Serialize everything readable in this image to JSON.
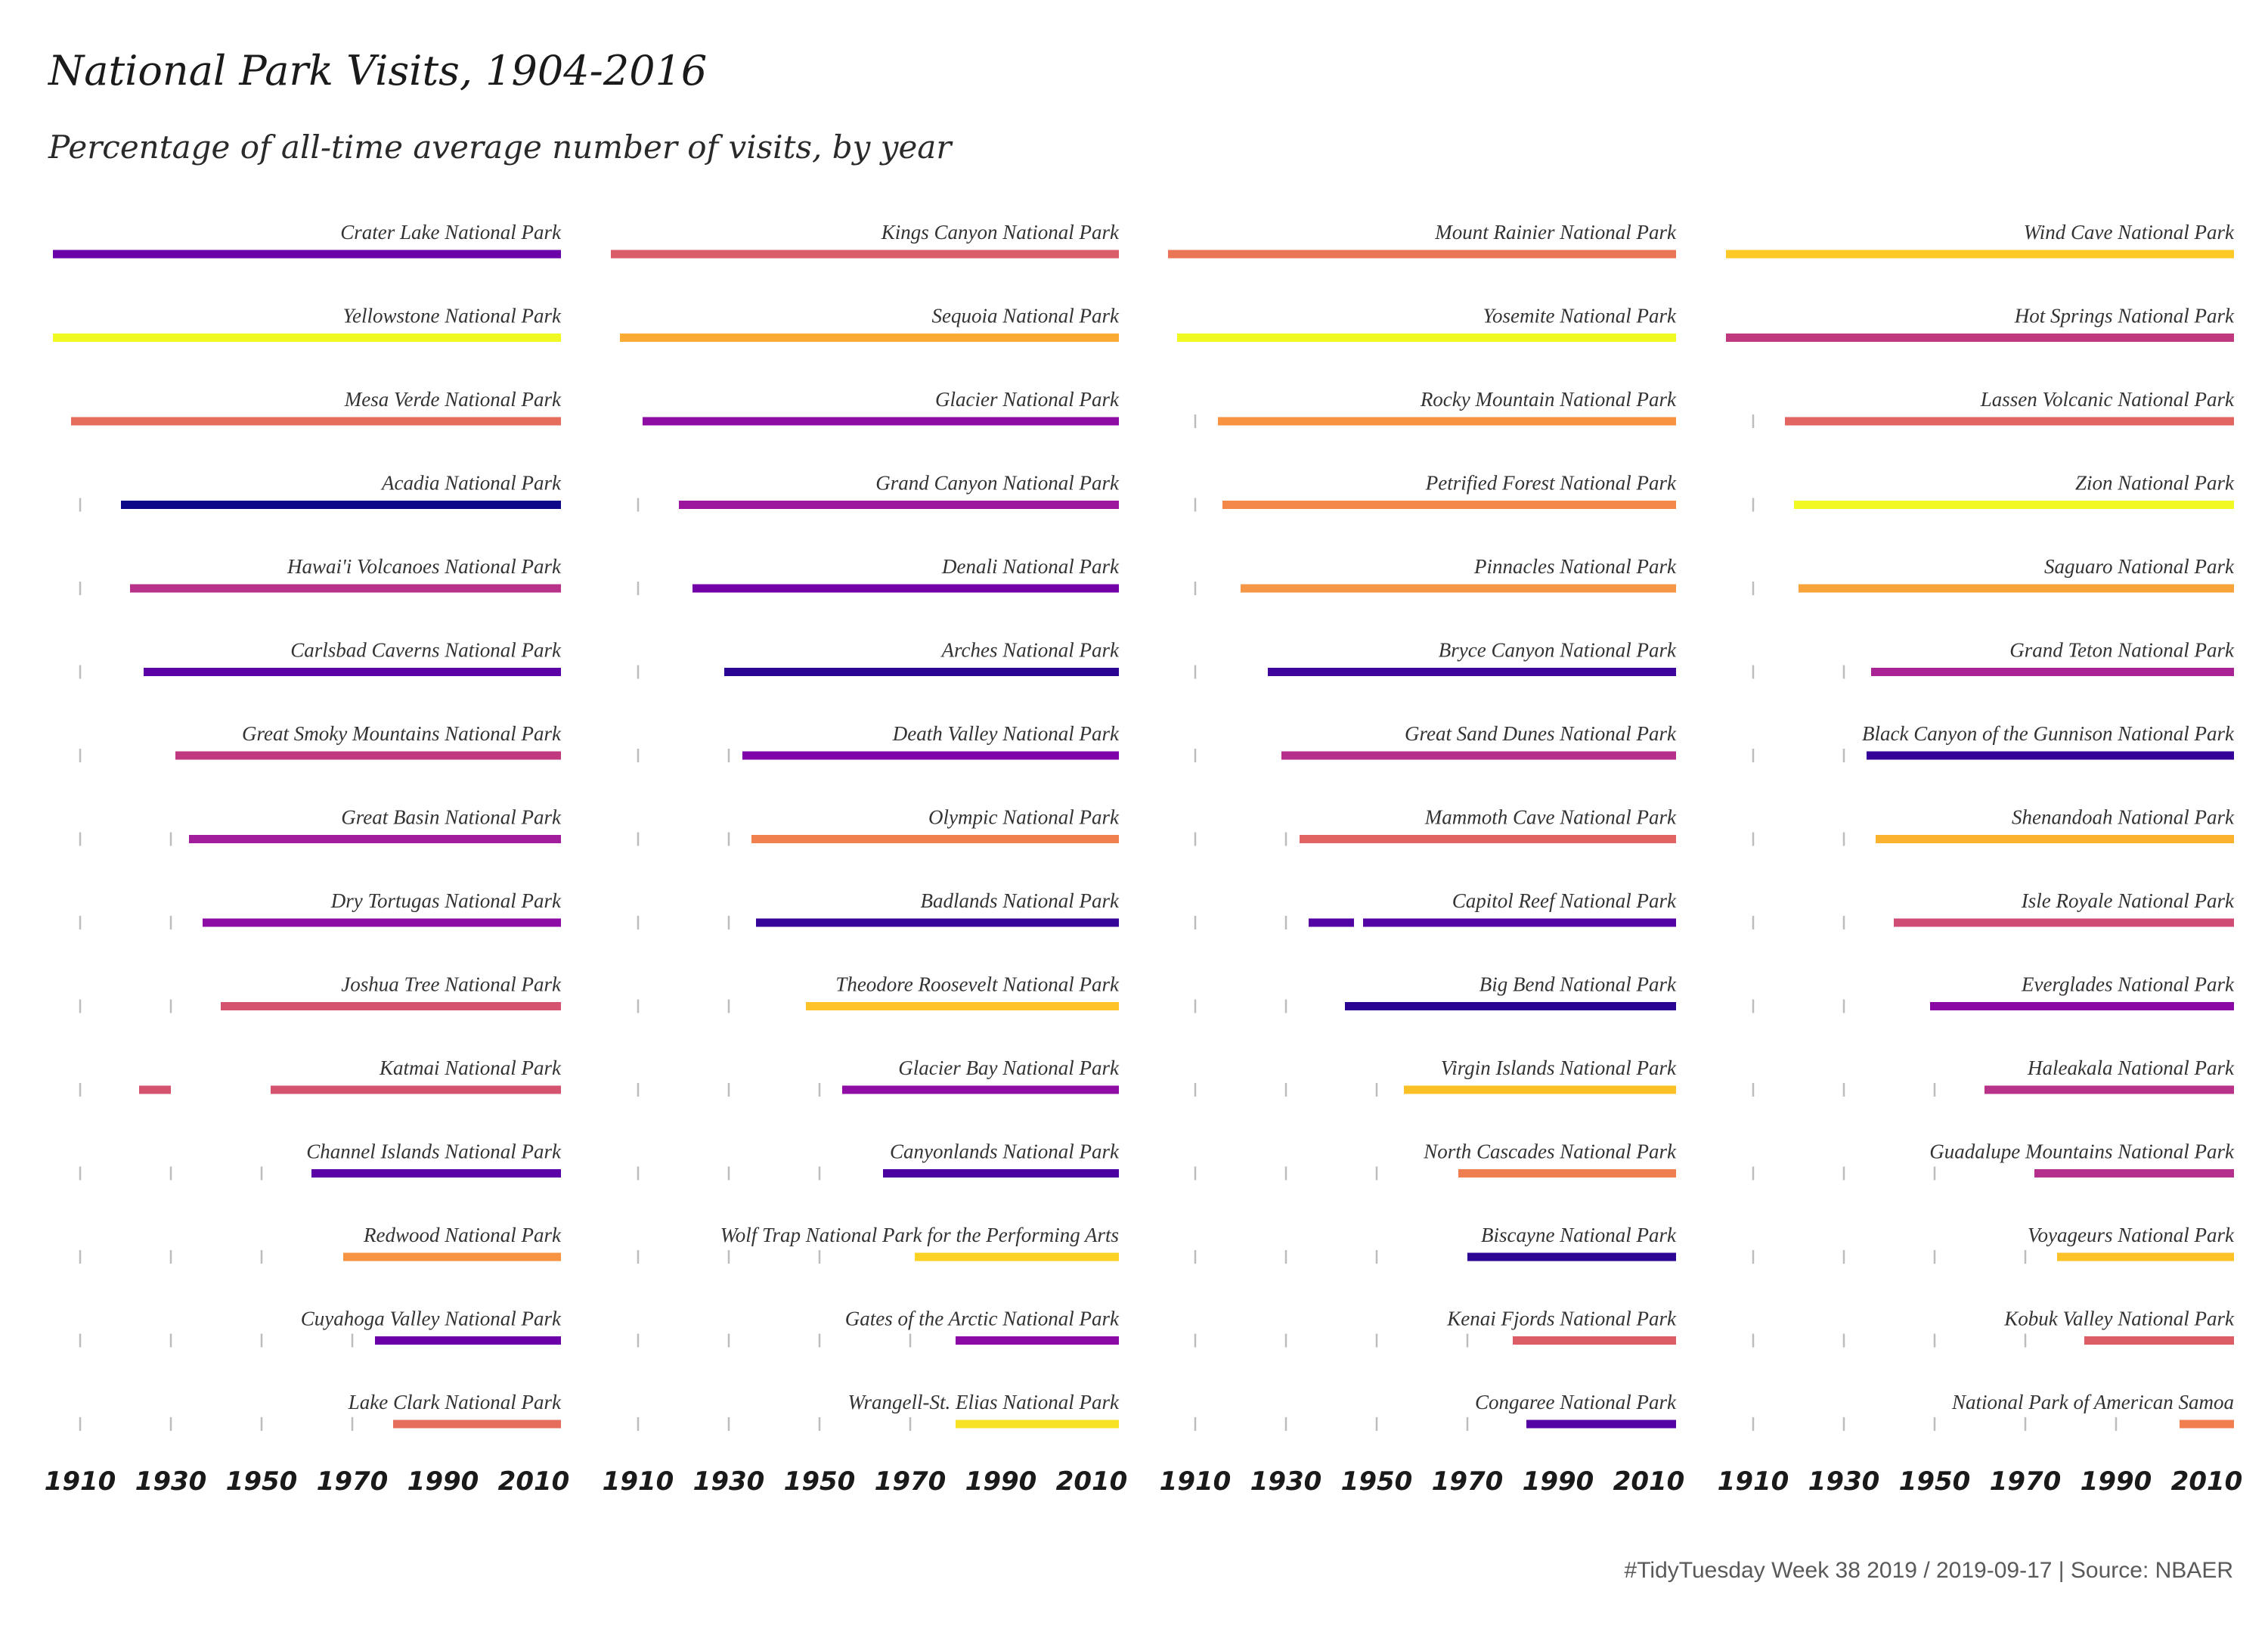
{
  "header": {
    "title": "National Park Visits, 1904-2016",
    "subtitle": "Percentage of all-time average number of visits, by year"
  },
  "caption": "#TidyTuesday Week 38 2019 / 2019-09-17 | Source: NBAER",
  "chart_data": {
    "type": "timeline",
    "xlim": [
      1904,
      2016
    ],
    "x_ticks": [
      1910,
      1930,
      1950,
      1970,
      1990,
      2010
    ],
    "color_scale": "plasma",
    "grid": false,
    "panels": [
      {
        "parks": [
          {
            "name": "Crater Lake National Park",
            "segments": [
              [
                1904,
                2016
              ]
            ],
            "color": "#6a00a8"
          },
          {
            "name": "Yellowstone National Park",
            "segments": [
              [
                1904,
                2016
              ]
            ],
            "color": "#f0f921"
          },
          {
            "name": "Mesa Verde National Park",
            "segments": [
              [
                1908,
                2016
              ]
            ],
            "color": "#e66c5c"
          },
          {
            "name": "Acadia National Park",
            "segments": [
              [
                1919,
                2016
              ]
            ],
            "color": "#0d0887"
          },
          {
            "name": "Hawai'i Volcanoes National Park",
            "segments": [
              [
                1921,
                2016
              ]
            ],
            "color": "#b83289"
          },
          {
            "name": "Carlsbad Caverns National Park",
            "segments": [
              [
                1924,
                2016
              ]
            ],
            "color": "#5c01a6"
          },
          {
            "name": "Great Smoky Mountains National Park",
            "segments": [
              [
                1931,
                2016
              ]
            ],
            "color": "#c0397f"
          },
          {
            "name": "Great Basin National Park",
            "segments": [
              [
                1934,
                2016
              ]
            ],
            "color": "#a11d9b"
          },
          {
            "name": "Dry Tortugas National Park",
            "segments": [
              [
                1937,
                2016
              ]
            ],
            "color": "#8d0ca5"
          },
          {
            "name": "Joshua Tree National Park",
            "segments": [
              [
                1941,
                2016
              ]
            ],
            "color": "#d5536f"
          },
          {
            "name": "Katmai National Park",
            "segments": [
              [
                1923,
                1930
              ],
              [
                1952,
                2016
              ]
            ],
            "color": "#d5536f"
          },
          {
            "name": "Channel Islands National Park",
            "segments": [
              [
                1961,
                2016
              ]
            ],
            "color": "#5c01a6"
          },
          {
            "name": "Redwood National Park",
            "segments": [
              [
                1968,
                2016
              ]
            ],
            "color": "#f89441"
          },
          {
            "name": "Cuyahoga Valley National Park",
            "segments": [
              [
                1975,
                2016
              ]
            ],
            "color": "#6a00a8"
          },
          {
            "name": "Lake Clark National Park",
            "segments": [
              [
                1979,
                2016
              ]
            ],
            "color": "#e66c5c"
          }
        ]
      },
      {
        "parks": [
          {
            "name": "Kings Canyon National Park",
            "segments": [
              [
                1904,
                2016
              ]
            ],
            "color": "#da5b69"
          },
          {
            "name": "Sequoia National Park",
            "segments": [
              [
                1906,
                2016
              ]
            ],
            "color": "#fbaa34"
          },
          {
            "name": "Glacier National Park",
            "segments": [
              [
                1911,
                2016
              ]
            ],
            "color": "#8e0ca4"
          },
          {
            "name": "Grand Canyon National Park",
            "segments": [
              [
                1919,
                2016
              ]
            ],
            "color": "#9c179e"
          },
          {
            "name": "Denali National Park",
            "segments": [
              [
                1922,
                2016
              ]
            ],
            "color": "#7301a8"
          },
          {
            "name": "Arches National Park",
            "segments": [
              [
                1929,
                2016
              ]
            ],
            "color": "#2c0594"
          },
          {
            "name": "Death Valley National Park",
            "segments": [
              [
                1933,
                2016
              ]
            ],
            "color": "#7e03a8"
          },
          {
            "name": "Olympic National Park",
            "segments": [
              [
                1935,
                2016
              ]
            ],
            "color": "#f0804e"
          },
          {
            "name": "Badlands National Park",
            "segments": [
              [
                1936,
                2016
              ]
            ],
            "color": "#350498"
          },
          {
            "name": "Theodore Roosevelt National Park",
            "segments": [
              [
                1947,
                2016
              ]
            ],
            "color": "#fdc328"
          },
          {
            "name": "Glacier Bay National Park",
            "segments": [
              [
                1955,
                2016
              ]
            ],
            "color": "#8f0da4"
          },
          {
            "name": "Canyonlands National Park",
            "segments": [
              [
                1964,
                2016
              ]
            ],
            "color": "#4c02a1"
          },
          {
            "name": "Wolf Trap National Park for the Performing Arts",
            "segments": [
              [
                1971,
                2016
              ]
            ],
            "color": "#fcd225"
          },
          {
            "name": "Gates of the Arctic National Park",
            "segments": [
              [
                1980,
                2016
              ]
            ],
            "color": "#8b0aa5"
          },
          {
            "name": "Wrangell-St. Elias National Park",
            "segments": [
              [
                1980,
                2016
              ]
            ],
            "color": "#f7e225"
          }
        ]
      },
      {
        "parks": [
          {
            "name": "Mount Rainier National Park",
            "segments": [
              [
                1904,
                2016
              ]
            ],
            "color": "#eb7655"
          },
          {
            "name": "Yosemite National Park",
            "segments": [
              [
                1906,
                2016
              ]
            ],
            "color": "#f0f921"
          },
          {
            "name": "Rocky Mountain National Park",
            "segments": [
              [
                1915,
                2016
              ]
            ],
            "color": "#f89441"
          },
          {
            "name": "Petrified Forest National Park",
            "segments": [
              [
                1916,
                2016
              ]
            ],
            "color": "#f48849"
          },
          {
            "name": "Pinnacles National Park",
            "segments": [
              [
                1920,
                2016
              ]
            ],
            "color": "#f59746"
          },
          {
            "name": "Bryce Canyon National Park",
            "segments": [
              [
                1926,
                2016
              ]
            ],
            "color": "#3e049c"
          },
          {
            "name": "Great Sand Dunes National Park",
            "segments": [
              [
                1929,
                2016
              ]
            ],
            "color": "#b52f8c"
          },
          {
            "name": "Mammoth Cave National Park",
            "segments": [
              [
                1933,
                2016
              ]
            ],
            "color": "#e16462"
          },
          {
            "name": "Capitol Reef National Park",
            "segments": [
              [
                1935,
                1945
              ],
              [
                1947,
                2016
              ]
            ],
            "color": "#5302a3"
          },
          {
            "name": "Big Bend National Park",
            "segments": [
              [
                1943,
                2016
              ]
            ],
            "color": "#2a0593"
          },
          {
            "name": "Virgin Islands National Park",
            "segments": [
              [
                1956,
                2016
              ]
            ],
            "color": "#fcc027"
          },
          {
            "name": "North Cascades National Park",
            "segments": [
              [
                1968,
                2016
              ]
            ],
            "color": "#ef7e50"
          },
          {
            "name": "Biscayne National Park",
            "segments": [
              [
                1970,
                2016
              ]
            ],
            "color": "#2c0594"
          },
          {
            "name": "Kenai Fjords National Park",
            "segments": [
              [
                1980,
                2016
              ]
            ],
            "color": "#dc5d66"
          },
          {
            "name": "Congaree National Park",
            "segments": [
              [
                1983,
                2016
              ]
            ],
            "color": "#5302a3"
          }
        ]
      },
      {
        "parks": [
          {
            "name": "Wind Cave National Park",
            "segments": [
              [
                1904,
                2016
              ]
            ],
            "color": "#fdc926"
          },
          {
            "name": "Hot Springs National Park",
            "segments": [
              [
                1904,
                2016
              ]
            ],
            "color": "#c0397f"
          },
          {
            "name": "Lassen Volcanic National Park",
            "segments": [
              [
                1917,
                2016
              ]
            ],
            "color": "#e26561"
          },
          {
            "name": "Zion National Park",
            "segments": [
              [
                1919,
                2016
              ]
            ],
            "color": "#f0f921"
          },
          {
            "name": "Saguaro National Park",
            "segments": [
              [
                1920,
                2016
              ]
            ],
            "color": "#f9a43b"
          },
          {
            "name": "Grand Teton National Park",
            "segments": [
              [
                1936,
                2016
              ]
            ],
            "color": "#a92395"
          },
          {
            "name": "Black Canyon of the Gunnison National Park",
            "segments": [
              [
                1935,
                2016
              ]
            ],
            "color": "#34049a"
          },
          {
            "name": "Shenandoah National Park",
            "segments": [
              [
                1937,
                2016
              ]
            ],
            "color": "#fbb32f"
          },
          {
            "name": "Isle Royale National Park",
            "segments": [
              [
                1941,
                2016
              ]
            ],
            "color": "#cf4c74"
          },
          {
            "name": "Everglades National Park",
            "segments": [
              [
                1949,
                2016
              ]
            ],
            "color": "#8a09a5"
          },
          {
            "name": "Haleakala National Park",
            "segments": [
              [
                1961,
                2016
              ]
            ],
            "color": "#b83289"
          },
          {
            "name": "Guadalupe Mountains National Park",
            "segments": [
              [
                1972,
                2016
              ]
            ],
            "color": "#b52f8c"
          },
          {
            "name": "Voyageurs National Park",
            "segments": [
              [
                1977,
                2016
              ]
            ],
            "color": "#fcc228"
          },
          {
            "name": "Kobuk Valley National Park",
            "segments": [
              [
                1983,
                2016
              ]
            ],
            "color": "#dc5d66"
          },
          {
            "name": "National Park of American Samoa",
            "segments": [
              [
                2004,
                2016
              ]
            ],
            "color": "#f07e4f"
          }
        ]
      }
    ]
  }
}
